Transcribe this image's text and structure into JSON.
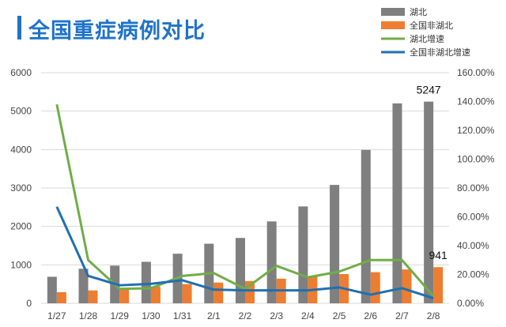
{
  "title": "全国重症病例对比",
  "colors": {
    "title": "#1f73c9",
    "hubei_bar": "#7f7f7f",
    "non_hubei_bar": "#ed7d31",
    "hubei_growth": "#70ad47",
    "non_hubei_growth": "#1f6fb2",
    "grid": "#d9d9d9"
  },
  "chart_data": {
    "type": "bar",
    "categories": [
      "1/27",
      "1/28",
      "1/29",
      "1/30",
      "1/31",
      "2/1",
      "2/2",
      "2/3",
      "2/4",
      "2/5",
      "2/6",
      "2/7",
      "2/8"
    ],
    "series": [
      {
        "name": "湖北",
        "kind": "bar",
        "axis": "left",
        "values": [
          690,
          900,
          980,
          1080,
          1290,
          1550,
          1700,
          2130,
          2520,
          3080,
          3990,
          5200,
          5247
        ]
      },
      {
        "name": "全国非湖北",
        "kind": "bar",
        "axis": "left",
        "values": [
          290,
          335,
          390,
          440,
          500,
          540,
          580,
          640,
          690,
          760,
          810,
          880,
          941
        ]
      },
      {
        "name": "湖北增速",
        "kind": "line",
        "axis": "right",
        "values": [
          138,
          30,
          10,
          10.5,
          19,
          21,
          10,
          26,
          18,
          22,
          30,
          30,
          5
        ]
      },
      {
        "name": "全国非湖北增速",
        "kind": "line",
        "axis": "right",
        "values": [
          67,
          19,
          12.5,
          13.5,
          16,
          9.5,
          9,
          9,
          9,
          11,
          6,
          10.5,
          3.5
        ]
      }
    ],
    "y_left": {
      "range": [
        0,
        6000
      ],
      "ticks": [
        "0",
        "1000",
        "2000",
        "3000",
        "4000",
        "5000",
        "6000"
      ]
    },
    "y_right": {
      "range": [
        0,
        160
      ],
      "ticks": [
        "0.00%",
        "20.00%",
        "40.00%",
        "60.00%",
        "80.00%",
        "100.00%",
        "120.00%",
        "140.00%",
        "160.00%"
      ]
    },
    "data_labels": [
      {
        "series": 0,
        "index": 12,
        "text": "5247"
      },
      {
        "series": 1,
        "index": 12,
        "text": "941"
      }
    ],
    "grid": true,
    "legend_position": "top-right"
  }
}
